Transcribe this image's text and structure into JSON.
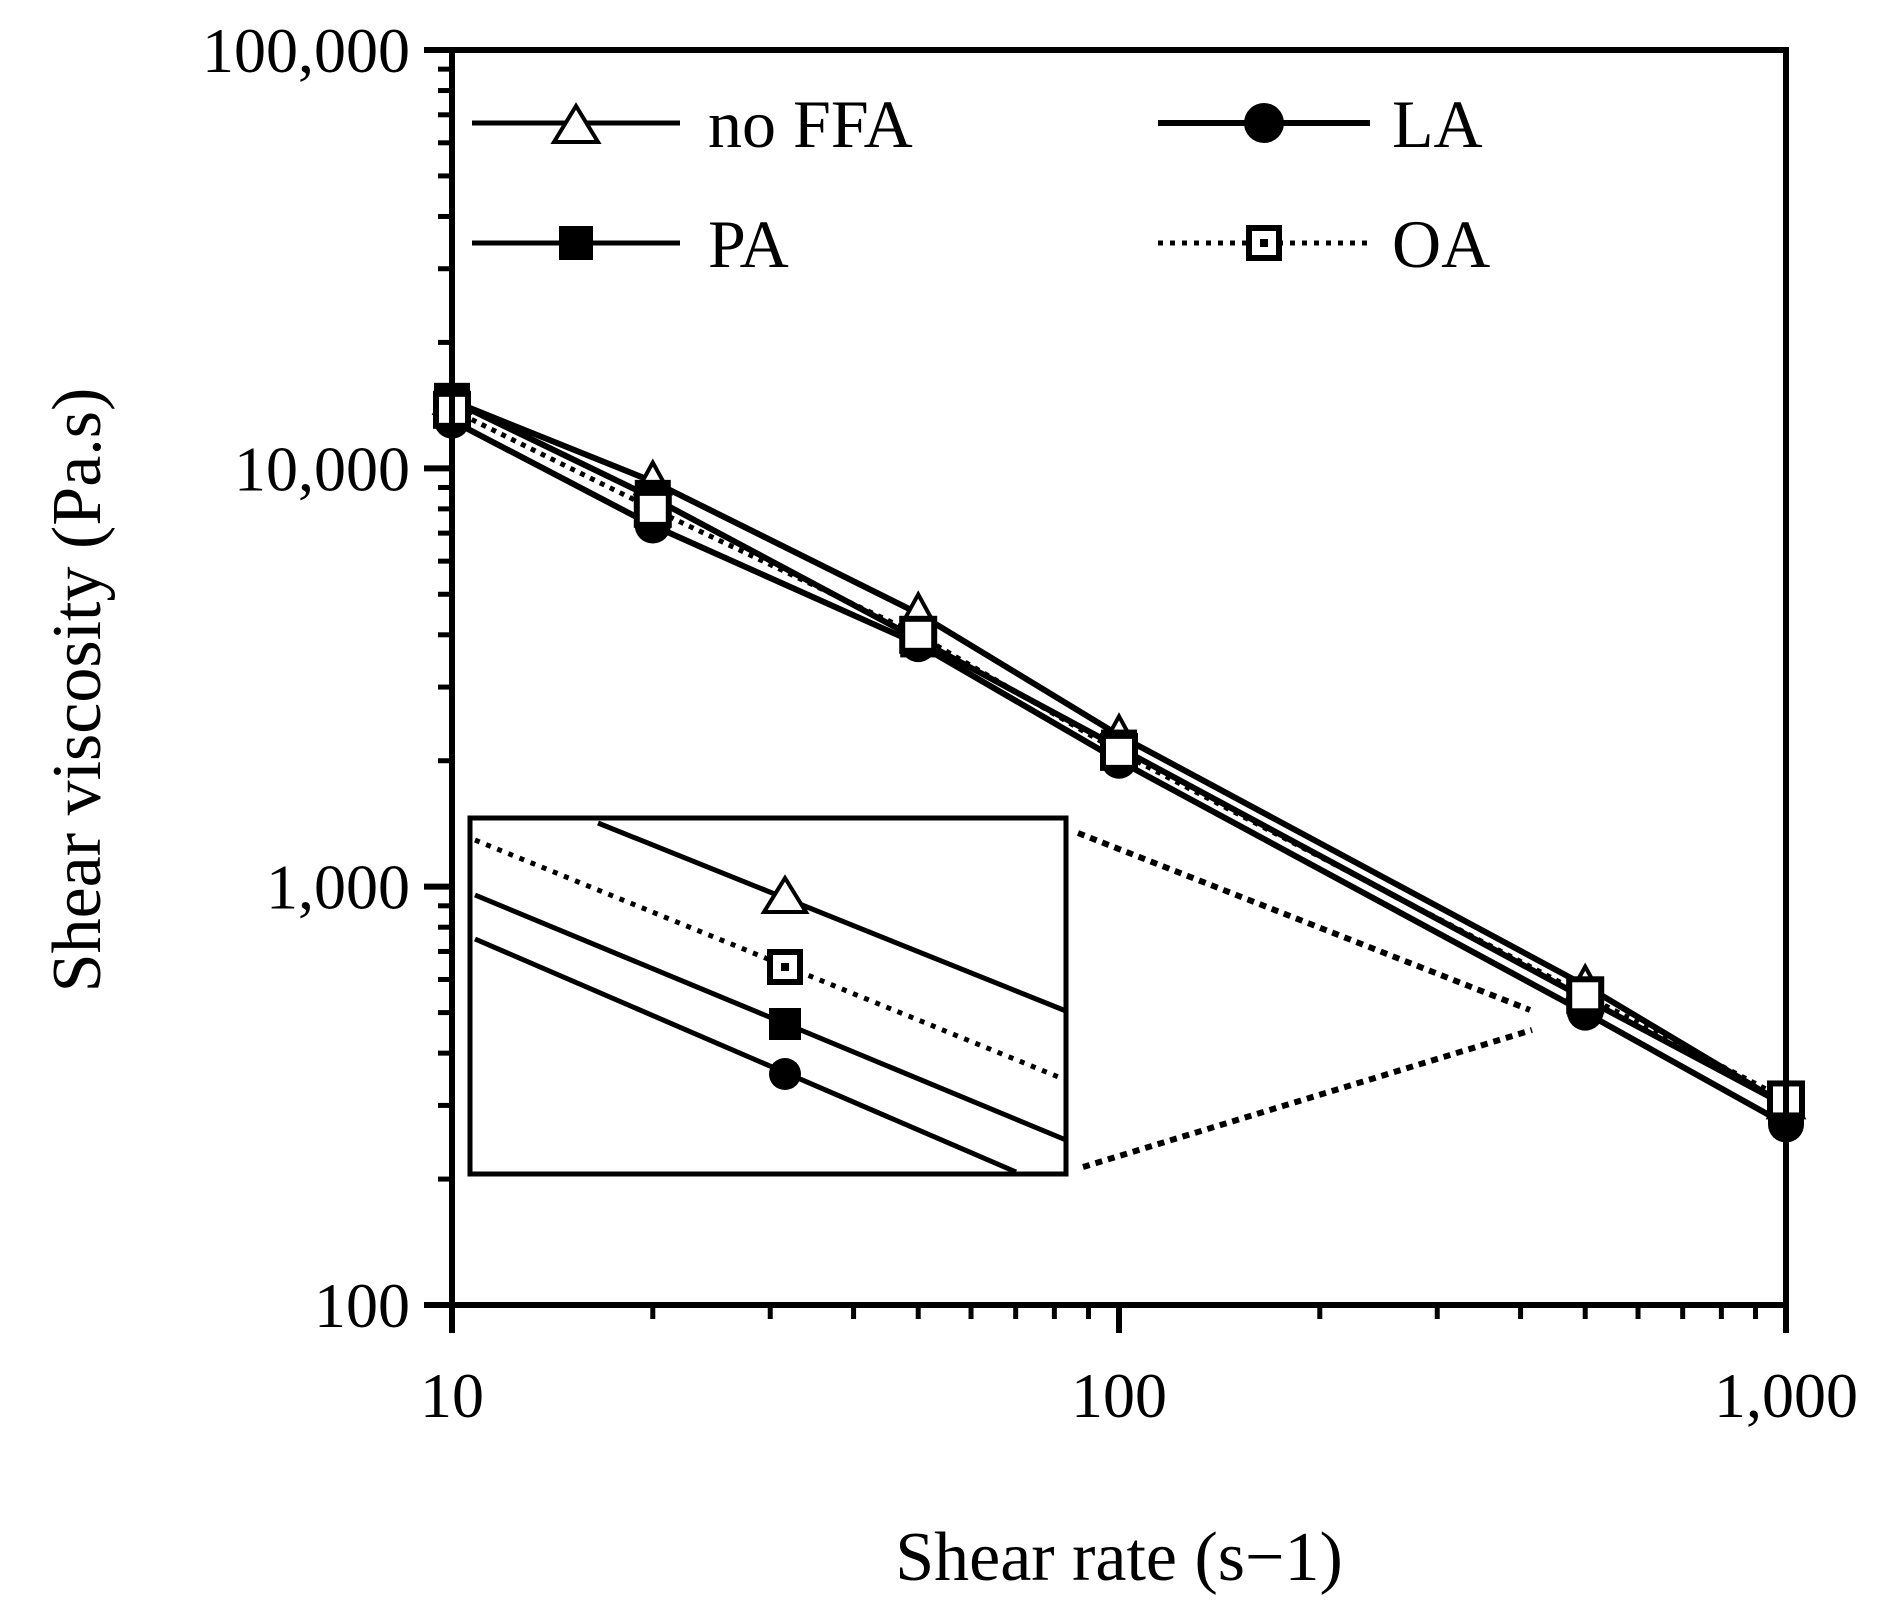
{
  "chart_data": {
    "type": "line",
    "xscale": "log",
    "yscale": "log",
    "xlabel": "Shear rate (s−1)",
    "ylabel": "Shear viscosity (Pa.s)",
    "xlim": [
      10,
      1000
    ],
    "ylim": [
      100,
      100000
    ],
    "x_ticks": [
      10,
      100,
      1000
    ],
    "x_tick_labels": [
      "10",
      "100",
      "1,000"
    ],
    "y_ticks": [
      100,
      1000,
      10000,
      100000
    ],
    "y_tick_labels": [
      "100",
      "1,000",
      "10,000",
      "100,000"
    ],
    "x": [
      10,
      20,
      50,
      100,
      500,
      1000
    ],
    "series": [
      {
        "name": "no FFA",
        "marker": "open-triangle",
        "line": "solid",
        "values": [
          14500,
          9300,
          4500,
          2300,
          580,
          300
        ]
      },
      {
        "name": "LA",
        "marker": "filled-circle",
        "line": "solid",
        "values": [
          13000,
          7300,
          3800,
          2000,
          500,
          270
        ]
      },
      {
        "name": "PA",
        "marker": "filled-square",
        "line": "solid",
        "values": [
          14500,
          8500,
          3900,
          2150,
          540,
          300
        ]
      },
      {
        "name": "OA",
        "marker": "open-square",
        "line": "dotted",
        "values": [
          13800,
          8000,
          4000,
          2100,
          550,
          310
        ]
      }
    ],
    "legend_position": "top",
    "inset": {
      "description": "zoom around shear rate 500",
      "order_top_to_bottom": [
        "no FFA",
        "OA",
        "PA",
        "LA"
      ]
    }
  }
}
